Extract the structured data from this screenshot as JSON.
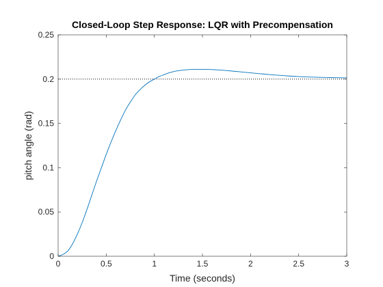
{
  "chart_data": {
    "type": "line",
    "title": "Closed-Loop Step Response: LQR with Precompensation",
    "xlabel": "Time (seconds)",
    "ylabel": "pitch angle (rad)",
    "xlim": [
      0,
      3
    ],
    "ylim": [
      0,
      0.25
    ],
    "xticks": [
      0,
      0.5,
      1,
      1.5,
      2,
      2.5,
      3
    ],
    "xtick_labels": [
      "0",
      "0.5",
      "1",
      "1.5",
      "2",
      "2.5",
      "3"
    ],
    "yticks": [
      0,
      0.05,
      0.1,
      0.15,
      0.2,
      0.25
    ],
    "ytick_labels": [
      "0",
      "0.05",
      "0.1",
      "0.15",
      "0.2",
      "0.25"
    ],
    "grid": false,
    "box": true,
    "reference_line": {
      "y": 0.2,
      "style": "dotted",
      "color": "#000000"
    },
    "series": [
      {
        "color": "#0072BD",
        "x": [
          0,
          0.05,
          0.1,
          0.15,
          0.2,
          0.25,
          0.3,
          0.35,
          0.4,
          0.45,
          0.5,
          0.55,
          0.6,
          0.65,
          0.7,
          0.75,
          0.8,
          0.85,
          0.9,
          0.95,
          1.0,
          1.05,
          1.1,
          1.15,
          1.2,
          1.25,
          1.3,
          1.35,
          1.4,
          1.45,
          1.5,
          1.55,
          1.6,
          1.65,
          1.7,
          1.8,
          1.9,
          2.0,
          2.1,
          2.2,
          2.3,
          2.4,
          2.5,
          2.6,
          2.7,
          2.8,
          2.9,
          3.0
        ],
        "y": [
          0,
          0.002,
          0.006,
          0.014,
          0.025,
          0.038,
          0.053,
          0.069,
          0.085,
          0.1,
          0.115,
          0.129,
          0.142,
          0.154,
          0.165,
          0.174,
          0.182,
          0.188,
          0.193,
          0.197,
          0.2,
          0.203,
          0.205,
          0.207,
          0.2085,
          0.2095,
          0.2102,
          0.2107,
          0.211,
          0.2111,
          0.2111,
          0.211,
          0.2108,
          0.2105,
          0.2101,
          0.2092,
          0.2082,
          0.2071,
          0.2061,
          0.2051,
          0.2043,
          0.2035,
          0.2029,
          0.2024,
          0.2021,
          0.2018,
          0.2016,
          0.2015
        ]
      }
    ]
  }
}
